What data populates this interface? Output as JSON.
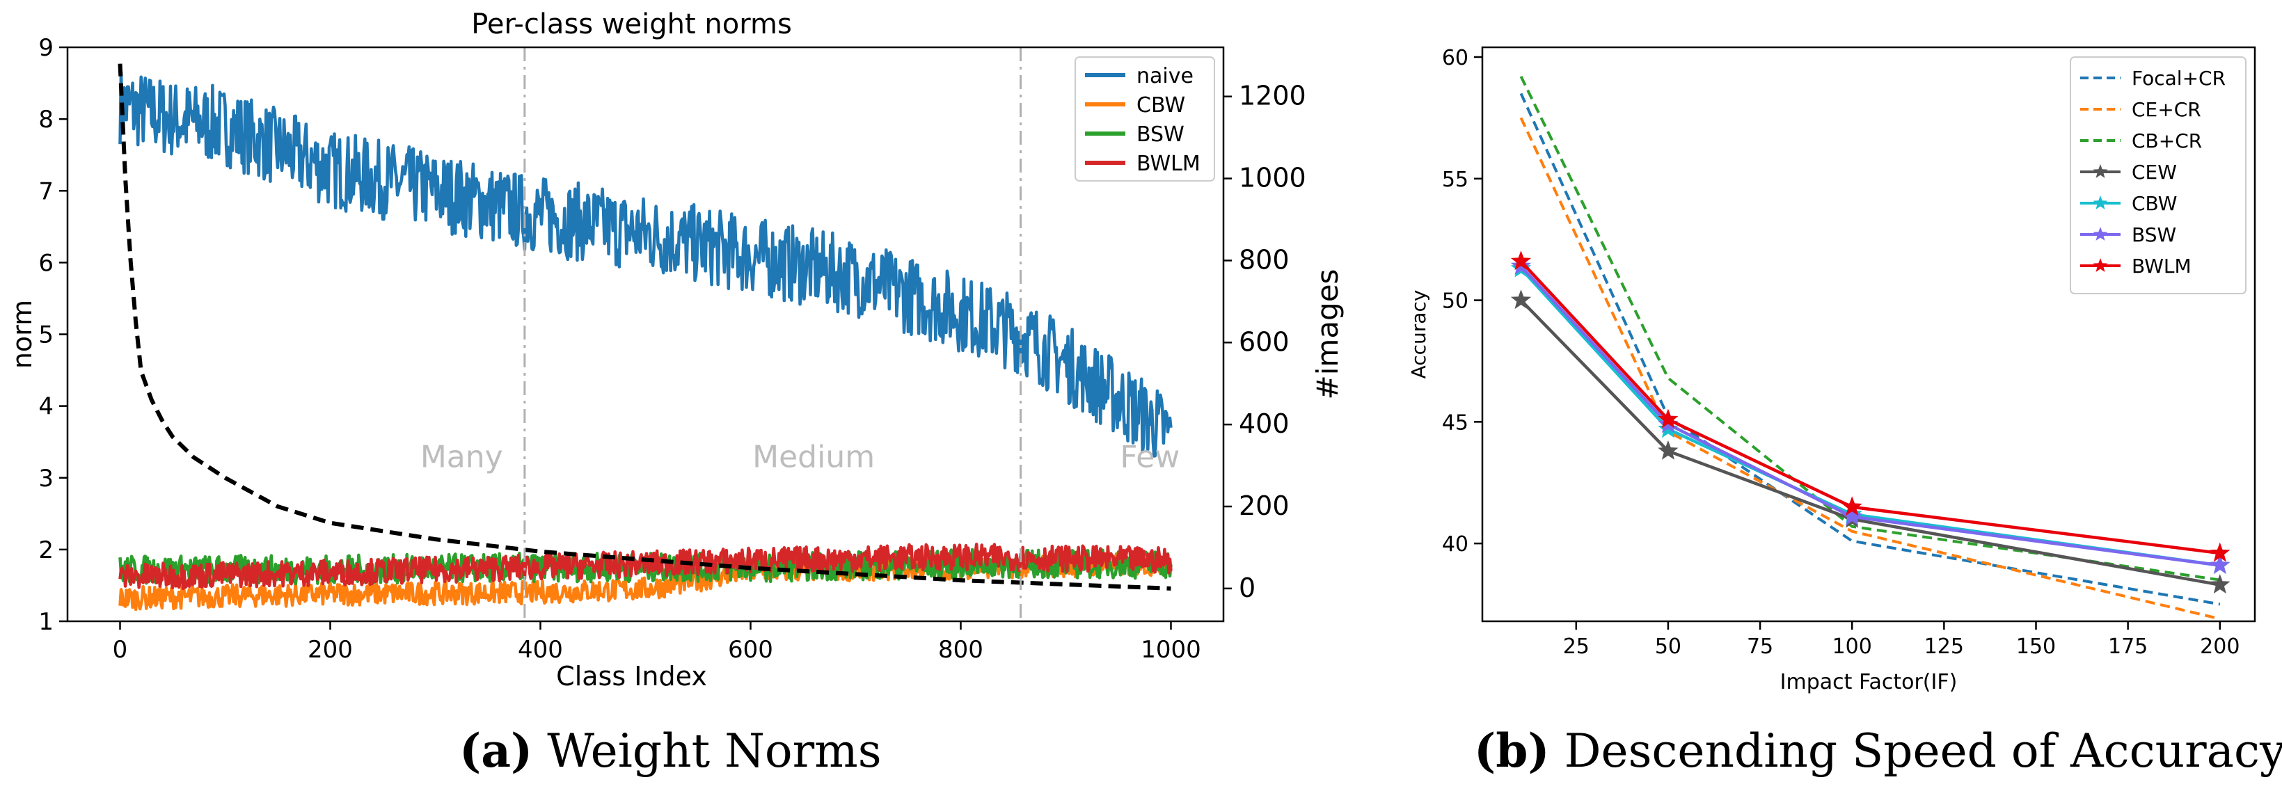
{
  "charts": [
    {
      "type": "line",
      "title": "Per-class weight norms",
      "xlabel": "Class Index",
      "ylabel": "norm",
      "y2label": "#images",
      "xlim": [
        -50,
        1050
      ],
      "ylim": [
        1,
        9
      ],
      "y2lim": [
        -80,
        1320
      ],
      "xticks": [
        0,
        200,
        400,
        600,
        800,
        1000
      ],
      "yticks": [
        1,
        2,
        3,
        4,
        5,
        6,
        7,
        8,
        9
      ],
      "y2ticks": [
        0,
        200,
        400,
        600,
        800,
        1000,
        1200
      ],
      "vlines": [
        385,
        857
      ],
      "regions": [
        {
          "label": "Many",
          "x": 325,
          "y": 3.15
        },
        {
          "label": "Medium",
          "x": 660,
          "y": 3.15
        },
        {
          "label": "Few",
          "x": 980,
          "y": 3.15
        }
      ],
      "legend_position": "top-right",
      "series": [
        {
          "name": "naive",
          "color": "#1f77b4",
          "kind": "noisy",
          "key": [
            [
              0,
              8.2
            ],
            [
              50,
              8.0
            ],
            [
              100,
              7.9
            ],
            [
              150,
              7.6
            ],
            [
              200,
              7.3
            ],
            [
              300,
              7.0
            ],
            [
              385,
              6.7
            ],
            [
              500,
              6.4
            ],
            [
              600,
              6.1
            ],
            [
              700,
              5.8
            ],
            [
              800,
              5.3
            ],
            [
              857,
              5.0
            ],
            [
              900,
              4.6
            ],
            [
              950,
              4.1
            ],
            [
              1000,
              3.6
            ]
          ],
          "noise": 0.55
        },
        {
          "name": "CBW",
          "color": "#ff7f0e",
          "kind": "noisy",
          "key": [
            [
              0,
              1.32
            ],
            [
              200,
              1.38
            ],
            [
              385,
              1.4
            ],
            [
              500,
              1.45
            ],
            [
              600,
              1.7
            ],
            [
              800,
              1.75
            ],
            [
              1000,
              1.8
            ]
          ],
          "noise": 0.16
        },
        {
          "name": "BSW",
          "color": "#2ca02c",
          "kind": "noisy",
          "key": [
            [
              0,
              1.72
            ],
            [
              200,
              1.72
            ],
            [
              385,
              1.75
            ],
            [
              600,
              1.75
            ],
            [
              800,
              1.8
            ],
            [
              1000,
              1.8
            ]
          ],
          "noise": 0.2
        },
        {
          "name": "BWLM",
          "color": "#d62728",
          "kind": "noisy",
          "key": [
            [
              0,
              1.62
            ],
            [
              200,
              1.68
            ],
            [
              385,
              1.75
            ],
            [
              500,
              1.8
            ],
            [
              600,
              1.85
            ],
            [
              800,
              1.9
            ],
            [
              1000,
              1.85
            ]
          ],
          "noise": 0.18
        },
        {
          "name": "",
          "color": "#000000",
          "kind": "images",
          "axis": "y2",
          "x": [
            0,
            5,
            10,
            15,
            20,
            30,
            40,
            50,
            70,
            100,
            150,
            200,
            300,
            400,
            500,
            600,
            700,
            800,
            900,
            1000
          ],
          "values": [
            1280,
            1000,
            800,
            650,
            530,
            460,
            410,
            370,
            320,
            270,
            200,
            160,
            120,
            90,
            70,
            50,
            35,
            20,
            10,
            0
          ]
        }
      ]
    },
    {
      "type": "line",
      "title": "",
      "xlabel": "Impact Factor(IF)",
      "ylabel": "Accuracy",
      "xlim": [
        -0.5,
        209.5
      ],
      "ylim": [
        36.8,
        60.4
      ],
      "xticks": [
        25,
        50,
        75,
        100,
        125,
        150,
        175,
        200
      ],
      "yticks": [
        40,
        45,
        50,
        55,
        60
      ],
      "x": [
        10,
        50,
        100,
        200
      ],
      "legend_position": "top-right",
      "series": [
        {
          "name": "Focal+CR",
          "color": "#1f77b4",
          "dashed": true,
          "marker": "",
          "values": [
            58.5,
            45.2,
            40.1,
            37.5
          ]
        },
        {
          "name": "CE+CR",
          "color": "#ff7f0e",
          "dashed": true,
          "marker": "",
          "values": [
            57.5,
            44.6,
            40.5,
            36.9
          ]
        },
        {
          "name": "CB+CR",
          "color": "#2ca02c",
          "dashed": true,
          "marker": "",
          "values": [
            59.2,
            46.8,
            40.7,
            38.5
          ]
        },
        {
          "name": "CEW",
          "color": "#555555",
          "dashed": false,
          "marker": "star",
          "values": [
            50.0,
            43.8,
            41.0,
            38.3
          ]
        },
        {
          "name": "CBW",
          "color": "#17becf",
          "dashed": false,
          "marker": "star",
          "values": [
            51.3,
            44.7,
            41.2,
            39.1
          ]
        },
        {
          "name": "BSW",
          "color": "#7b68ee",
          "dashed": false,
          "marker": "star",
          "values": [
            51.4,
            44.9,
            41.1,
            39.1
          ]
        },
        {
          "name": "BWLM",
          "color": "#e8000b",
          "dashed": false,
          "marker": "star",
          "values": [
            51.6,
            45.1,
            41.5,
            39.6
          ]
        }
      ]
    }
  ],
  "captions": [
    {
      "letter": "(a)",
      "text": " Weight Norms"
    },
    {
      "letter": "(b)",
      "text": " Descending Speed of Accuracy"
    }
  ]
}
